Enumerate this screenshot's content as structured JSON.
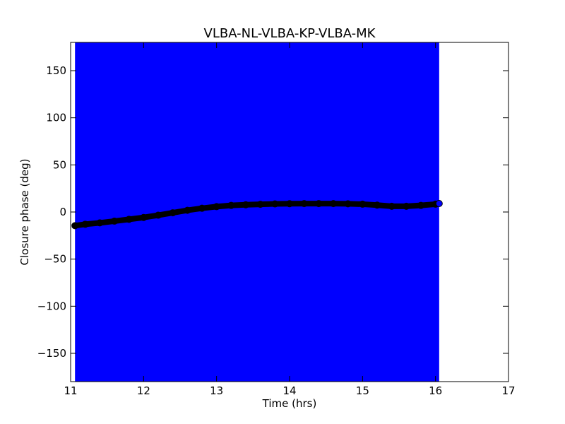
{
  "chart_data": {
    "type": "scatter",
    "title": "VLBA-NL-VLBA-KP-VLBA-MK",
    "xlabel": "Time (hrs)",
    "ylabel": "Closure phase (deg)",
    "xlim": [
      11,
      17
    ],
    "ylim": [
      -180,
      180
    ],
    "xticks": [
      11,
      12,
      13,
      14,
      15,
      16,
      17
    ],
    "yticks": [
      -150,
      -100,
      -50,
      0,
      50,
      100,
      150
    ],
    "ytick_labels": [
      "−150",
      "−100",
      "−50",
      "0",
      "50",
      "100",
      "150"
    ],
    "grid": false,
    "legend": "none",
    "error_band": {
      "color": "#0000ff",
      "x_range": [
        11.06,
        16.05
      ],
      "y_range": [
        -180,
        180
      ]
    },
    "series": [
      {
        "color": "#000000",
        "x": [
          11.06,
          11.2,
          11.4,
          11.6,
          11.8,
          12.0,
          12.2,
          12.4,
          12.6,
          12.8,
          13.0,
          13.2,
          13.4,
          13.6,
          13.8,
          14.0,
          14.2,
          14.4,
          14.6,
          14.8,
          15.0,
          15.2,
          15.4,
          15.6,
          15.8,
          16.0,
          16.05
        ],
        "y": [
          -14.5,
          -13.0,
          -11.5,
          -9.7,
          -7.8,
          -5.8,
          -3.4,
          -0.8,
          1.8,
          4.0,
          5.7,
          7.0,
          7.7,
          8.2,
          8.6,
          8.8,
          8.9,
          8.9,
          8.9,
          8.7,
          8.3,
          7.3,
          6.1,
          6.1,
          7.0,
          8.3,
          9.0
        ]
      }
    ]
  }
}
